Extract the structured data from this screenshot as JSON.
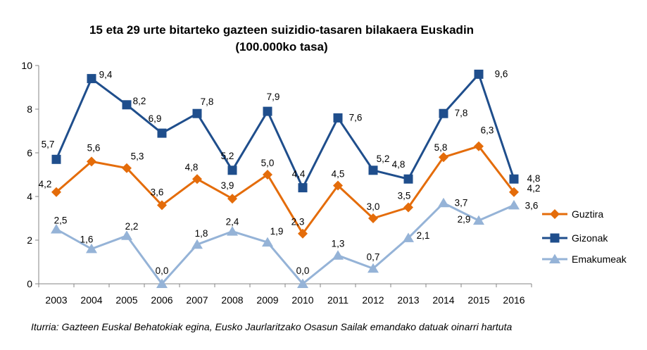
{
  "chart_data": {
    "type": "line",
    "title_lines": [
      "15 eta 29 urte bitarteko  gazteen suizidio-tasaren bilakaera Euskadin",
      "(100.000ko tasa)"
    ],
    "xlabel": "",
    "ylabel": "",
    "categories": [
      "2003",
      "2004",
      "2005",
      "2006",
      "2007",
      "2008",
      "2009",
      "2010",
      "2011",
      "2012",
      "2013",
      "2014",
      "2015",
      "2016"
    ],
    "ylim": [
      0,
      10
    ],
    "yticks": [
      0,
      2,
      4,
      6,
      8,
      10
    ],
    "grid": false,
    "legend_position": "right",
    "series": [
      {
        "name": "Guztira",
        "color": "#E46C0A",
        "marker": "diamond",
        "values": [
          4.2,
          5.6,
          5.3,
          3.6,
          4.8,
          3.9,
          5.0,
          2.3,
          4.5,
          3.0,
          3.5,
          5.8,
          6.3,
          4.2
        ],
        "labels": [
          "4,2",
          "5,6",
          "5,3",
          "3,6",
          "4,8",
          "3,9",
          "5,0",
          "2,3",
          "4,5",
          "3,0",
          "3,5",
          "5,8",
          "6,3",
          "4,2"
        ]
      },
      {
        "name": "Gizonak",
        "color": "#1F4E8C",
        "marker": "square",
        "values": [
          5.7,
          9.4,
          8.2,
          6.9,
          7.8,
          5.2,
          7.9,
          4.4,
          7.6,
          5.2,
          4.8,
          7.8,
          9.6,
          4.8
        ],
        "labels": [
          "5,7",
          "9,4",
          "8,2",
          "6,9",
          "7,8",
          "5,2",
          "7,9",
          "4,4",
          "7,6",
          "5,2",
          "4,8",
          "7,8",
          "9,6",
          "4,8"
        ]
      },
      {
        "name": "Emakumeak",
        "color": "#95B3D7",
        "marker": "triangle",
        "values": [
          2.5,
          1.6,
          2.2,
          0.0,
          1.8,
          2.4,
          1.9,
          0.0,
          1.3,
          0.7,
          2.1,
          3.7,
          2.9,
          3.6
        ],
        "labels": [
          "2,5",
          "1,6",
          "2,2",
          "0,0",
          "1,8",
          "2,4",
          "1,9",
          "0,0",
          "1,3",
          "0,7",
          "2,1",
          "3,7",
          "2,9",
          "3,6"
        ]
      }
    ],
    "source_note": "Iturria: Gazteen Euskal Behatokiak egina, Eusko Jaurlaritzako Osasun Sailak emandako datuak oinarri hartuta"
  }
}
